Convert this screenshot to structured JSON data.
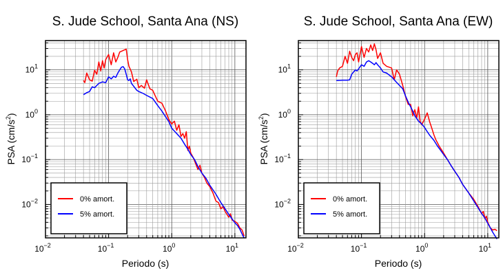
{
  "chart_data": [
    {
      "type": "line",
      "title": "S. Jude School, Santa Ana (NS)",
      "xlabel": "Periodo (s)",
      "ylabel": "PSA (cm/s²)",
      "ylabel_main": "PSA (cm/s",
      "ylabel_sup": "2",
      "ylabel_end": ")",
      "x_scale": "log",
      "y_scale": "log",
      "xlim": [
        0.01,
        15
      ],
      "ylim": [
        0.0018,
        45
      ],
      "x_ticks": [
        {
          "value": 0.01,
          "base": "10",
          "exp": "−2"
        },
        {
          "value": 0.1,
          "base": "10",
          "exp": "−1"
        },
        {
          "value": 1,
          "base": "10",
          "exp": "0"
        },
        {
          "value": 10,
          "base": "10",
          "exp": "1"
        }
      ],
      "y_ticks": [
        {
          "value": 0.01,
          "base": "10",
          "exp": "−2"
        },
        {
          "value": 0.1,
          "base": "10",
          "exp": "−1"
        },
        {
          "value": 1,
          "base": "10",
          "exp": "0"
        },
        {
          "value": 10,
          "base": "10",
          "exp": "1"
        }
      ],
      "grid": true,
      "legend_position": "bottom-left",
      "series": [
        {
          "name": "0% amort.",
          "color": "#ff0000",
          "points": [
            [
              0.04,
              5.8
            ],
            [
              0.042,
              5.2
            ],
            [
              0.045,
              8.5
            ],
            [
              0.05,
              6.0
            ],
            [
              0.055,
              5.6
            ],
            [
              0.06,
              9.8
            ],
            [
              0.065,
              8.0
            ],
            [
              0.07,
              15
            ],
            [
              0.075,
              9.5
            ],
            [
              0.08,
              16
            ],
            [
              0.085,
              11
            ],
            [
              0.09,
              17
            ],
            [
              0.1,
              22
            ],
            [
              0.11,
              13
            ],
            [
              0.12,
              24
            ],
            [
              0.13,
              15
            ],
            [
              0.14,
              19
            ],
            [
              0.15,
              25
            ],
            [
              0.17,
              27
            ],
            [
              0.19,
              29
            ],
            [
              0.2,
              17
            ],
            [
              0.21,
              12
            ],
            [
              0.23,
              9
            ],
            [
              0.25,
              5.5
            ],
            [
              0.28,
              6.2
            ],
            [
              0.3,
              4.0
            ],
            [
              0.33,
              4.5
            ],
            [
              0.37,
              3.9
            ],
            [
              0.4,
              6.0
            ],
            [
              0.45,
              3.8
            ],
            [
              0.5,
              3.5
            ],
            [
              0.55,
              2.6
            ],
            [
              0.6,
              2.0
            ],
            [
              0.7,
              1.8
            ],
            [
              0.8,
              1.2
            ],
            [
              0.9,
              0.78
            ],
            [
              1.0,
              0.62
            ],
            [
              1.1,
              0.72
            ],
            [
              1.2,
              0.45
            ],
            [
              1.3,
              0.6
            ],
            [
              1.4,
              0.33
            ],
            [
              1.5,
              0.38
            ],
            [
              1.6,
              0.3
            ],
            [
              1.7,
              0.42
            ],
            [
              1.8,
              0.16
            ],
            [
              1.9,
              0.2
            ],
            [
              2.0,
              0.14
            ],
            [
              2.2,
              0.11
            ],
            [
              2.4,
              0.08
            ],
            [
              2.6,
              0.06
            ],
            [
              2.8,
              0.075
            ],
            [
              3.0,
              0.05
            ],
            [
              3.3,
              0.04
            ],
            [
              3.6,
              0.03
            ],
            [
              4.0,
              0.025
            ],
            [
              4.5,
              0.018
            ],
            [
              5.0,
              0.012
            ],
            [
              5.5,
              0.011
            ],
            [
              6.0,
              0.008
            ],
            [
              6.5,
              0.009
            ],
            [
              7.0,
              0.007
            ],
            [
              7.5,
              0.006
            ],
            [
              8.0,
              0.0052
            ],
            [
              8.5,
              0.0062
            ],
            [
              9.0,
              0.0045
            ],
            [
              10,
              0.0042
            ],
            [
              11,
              0.0038
            ],
            [
              12,
              0.003
            ],
            [
              13,
              0.0027
            ],
            [
              14,
              0.002
            ]
          ]
        },
        {
          "name": "5% amort.",
          "color": "#0000ff",
          "points": [
            [
              0.04,
              2.8
            ],
            [
              0.045,
              3.1
            ],
            [
              0.05,
              3.3
            ],
            [
              0.055,
              4.2
            ],
            [
              0.06,
              4.0
            ],
            [
              0.07,
              5.0
            ],
            [
              0.08,
              5.4
            ],
            [
              0.09,
              5.2
            ],
            [
              0.1,
              7.0
            ],
            [
              0.11,
              6.3
            ],
            [
              0.12,
              7.2
            ],
            [
              0.13,
              6.8
            ],
            [
              0.14,
              8.5
            ],
            [
              0.15,
              10
            ],
            [
              0.16,
              11.5
            ],
            [
              0.17,
              11.8
            ],
            [
              0.18,
              10.5
            ],
            [
              0.19,
              8.0
            ],
            [
              0.2,
              6.0
            ],
            [
              0.21,
              5.8
            ],
            [
              0.22,
              6.3
            ],
            [
              0.23,
              5.0
            ],
            [
              0.25,
              4.3
            ],
            [
              0.28,
              3.5
            ],
            [
              0.3,
              3.3
            ],
            [
              0.35,
              3.0
            ],
            [
              0.4,
              2.7
            ],
            [
              0.5,
              2.3
            ],
            [
              0.6,
              1.6
            ],
            [
              0.7,
              1.2
            ],
            [
              0.8,
              0.9
            ],
            [
              0.9,
              0.7
            ],
            [
              1.0,
              0.5
            ],
            [
              1.2,
              0.38
            ],
            [
              1.4,
              0.3
            ],
            [
              1.6,
              0.22
            ],
            [
              1.8,
              0.17
            ],
            [
              2.0,
              0.13
            ],
            [
              2.3,
              0.1
            ],
            [
              2.6,
              0.07
            ],
            [
              3.0,
              0.05
            ],
            [
              3.5,
              0.038
            ],
            [
              4.0,
              0.027
            ],
            [
              5.0,
              0.017
            ],
            [
              6.0,
              0.011
            ],
            [
              7.0,
              0.008
            ],
            [
              8.0,
              0.006
            ],
            [
              9.0,
              0.0048
            ],
            [
              10,
              0.0039
            ],
            [
              11,
              0.0034
            ],
            [
              12,
              0.0028
            ],
            [
              13,
              0.0022
            ],
            [
              14,
              0.0018
            ]
          ]
        }
      ]
    },
    {
      "type": "line",
      "title": "S. Jude School, Santa Ana (EW)",
      "xlabel": "Periodo (s)",
      "ylabel": "PSA (cm/s²)",
      "ylabel_main": "PSA (cm/s",
      "ylabel_sup": "2",
      "ylabel_end": ")",
      "x_scale": "log",
      "y_scale": "log",
      "xlim": [
        0.01,
        15
      ],
      "ylim": [
        0.0018,
        45
      ],
      "x_ticks": [
        {
          "value": 0.01,
          "base": "10",
          "exp": "−2"
        },
        {
          "value": 0.1,
          "base": "10",
          "exp": "−1"
        },
        {
          "value": 1,
          "base": "10",
          "exp": "0"
        },
        {
          "value": 10,
          "base": "10",
          "exp": "1"
        }
      ],
      "y_ticks": [
        {
          "value": 0.01,
          "base": "10",
          "exp": "−2"
        },
        {
          "value": 0.1,
          "base": "10",
          "exp": "−1"
        },
        {
          "value": 1,
          "base": "10",
          "exp": "0"
        },
        {
          "value": 10,
          "base": "10",
          "exp": "1"
        }
      ],
      "grid": true,
      "legend_position": "bottom-left",
      "series": [
        {
          "name": "0% amort.",
          "color": "#ff0000",
          "points": [
            [
              0.04,
              7.0
            ],
            [
              0.042,
              9.5
            ],
            [
              0.045,
              11
            ],
            [
              0.05,
              12
            ],
            [
              0.055,
              20
            ],
            [
              0.06,
              14
            ],
            [
              0.065,
              26
            ],
            [
              0.07,
              19
            ],
            [
              0.075,
              16
            ],
            [
              0.08,
              22
            ],
            [
              0.085,
              24
            ],
            [
              0.09,
              15
            ],
            [
              0.1,
              33
            ],
            [
              0.11,
              19
            ],
            [
              0.12,
              30
            ],
            [
              0.13,
              25
            ],
            [
              0.14,
              36
            ],
            [
              0.15,
              27
            ],
            [
              0.16,
              38
            ],
            [
              0.17,
              28
            ],
            [
              0.18,
              18
            ],
            [
              0.2,
              24
            ],
            [
              0.22,
              14
            ],
            [
              0.25,
              12
            ],
            [
              0.3,
              11
            ],
            [
              0.33,
              6.0
            ],
            [
              0.36,
              10
            ],
            [
              0.4,
              8.0
            ],
            [
              0.45,
              4.5
            ],
            [
              0.5,
              2.5
            ],
            [
              0.55,
              1.7
            ],
            [
              0.6,
              1.7
            ],
            [
              0.65,
              0.95
            ],
            [
              0.7,
              1.3
            ],
            [
              0.75,
              0.85
            ],
            [
              0.8,
              1.5
            ],
            [
              0.85,
              0.7
            ],
            [
              0.9,
              0.6
            ],
            [
              1.0,
              0.8
            ],
            [
              1.1,
              1.1
            ],
            [
              1.2,
              0.7
            ],
            [
              1.3,
              0.5
            ],
            [
              1.4,
              0.36
            ],
            [
              1.5,
              0.28
            ],
            [
              1.7,
              0.2
            ],
            [
              2.0,
              0.14
            ],
            [
              2.3,
              0.1
            ],
            [
              2.6,
              0.075
            ],
            [
              3.0,
              0.055
            ],
            [
              3.5,
              0.04
            ],
            [
              4.0,
              0.028
            ],
            [
              5.0,
              0.018
            ],
            [
              6.0,
              0.013
            ],
            [
              7.0,
              0.009
            ],
            [
              7.5,
              0.0075
            ],
            [
              8.0,
              0.0062
            ],
            [
              8.5,
              0.007
            ],
            [
              9.0,
              0.0048
            ],
            [
              9.5,
              0.0055
            ],
            [
              10,
              0.004
            ],
            [
              11,
              0.003
            ],
            [
              12,
              0.0027
            ],
            [
              13,
              0.0028
            ],
            [
              14,
              0.0026
            ]
          ]
        },
        {
          "name": "5% amort.",
          "color": "#0000ff",
          "points": [
            [
              0.04,
              5.8
            ],
            [
              0.05,
              5.9
            ],
            [
              0.06,
              5.9
            ],
            [
              0.065,
              6.0
            ],
            [
              0.07,
              8.0
            ],
            [
              0.08,
              10
            ],
            [
              0.085,
              9.5
            ],
            [
              0.09,
              10.5
            ],
            [
              0.1,
              13
            ],
            [
              0.11,
              12
            ],
            [
              0.12,
              15
            ],
            [
              0.13,
              16
            ],
            [
              0.14,
              15
            ],
            [
              0.15,
              14
            ],
            [
              0.16,
              13
            ],
            [
              0.17,
              14.5
            ],
            [
              0.18,
              13
            ],
            [
              0.2,
              11
            ],
            [
              0.22,
              9
            ],
            [
              0.25,
              8.5
            ],
            [
              0.3,
              7.0
            ],
            [
              0.35,
              5.5
            ],
            [
              0.4,
              4.5
            ],
            [
              0.45,
              3.8
            ],
            [
              0.5,
              2.6
            ],
            [
              0.55,
              1.9
            ],
            [
              0.6,
              1.5
            ],
            [
              0.65,
              1.2
            ],
            [
              0.7,
              0.95
            ],
            [
              0.8,
              0.72
            ],
            [
              0.9,
              0.62
            ],
            [
              1.0,
              0.52
            ],
            [
              1.1,
              0.42
            ],
            [
              1.2,
              0.35
            ],
            [
              1.4,
              0.27
            ],
            [
              1.6,
              0.2
            ],
            [
              1.8,
              0.16
            ],
            [
              2.0,
              0.13
            ],
            [
              2.3,
              0.1
            ],
            [
              2.6,
              0.075
            ],
            [
              3.0,
              0.055
            ],
            [
              3.5,
              0.04
            ],
            [
              4.0,
              0.028
            ],
            [
              5.0,
              0.018
            ],
            [
              6.0,
              0.012
            ],
            [
              7.0,
              0.0085
            ],
            [
              8.0,
              0.0063
            ],
            [
              9.0,
              0.005
            ],
            [
              10,
              0.0038
            ],
            [
              11,
              0.003
            ],
            [
              12,
              0.0024
            ],
            [
              13,
              0.002
            ],
            [
              14,
              0.0017
            ]
          ]
        }
      ]
    }
  ]
}
